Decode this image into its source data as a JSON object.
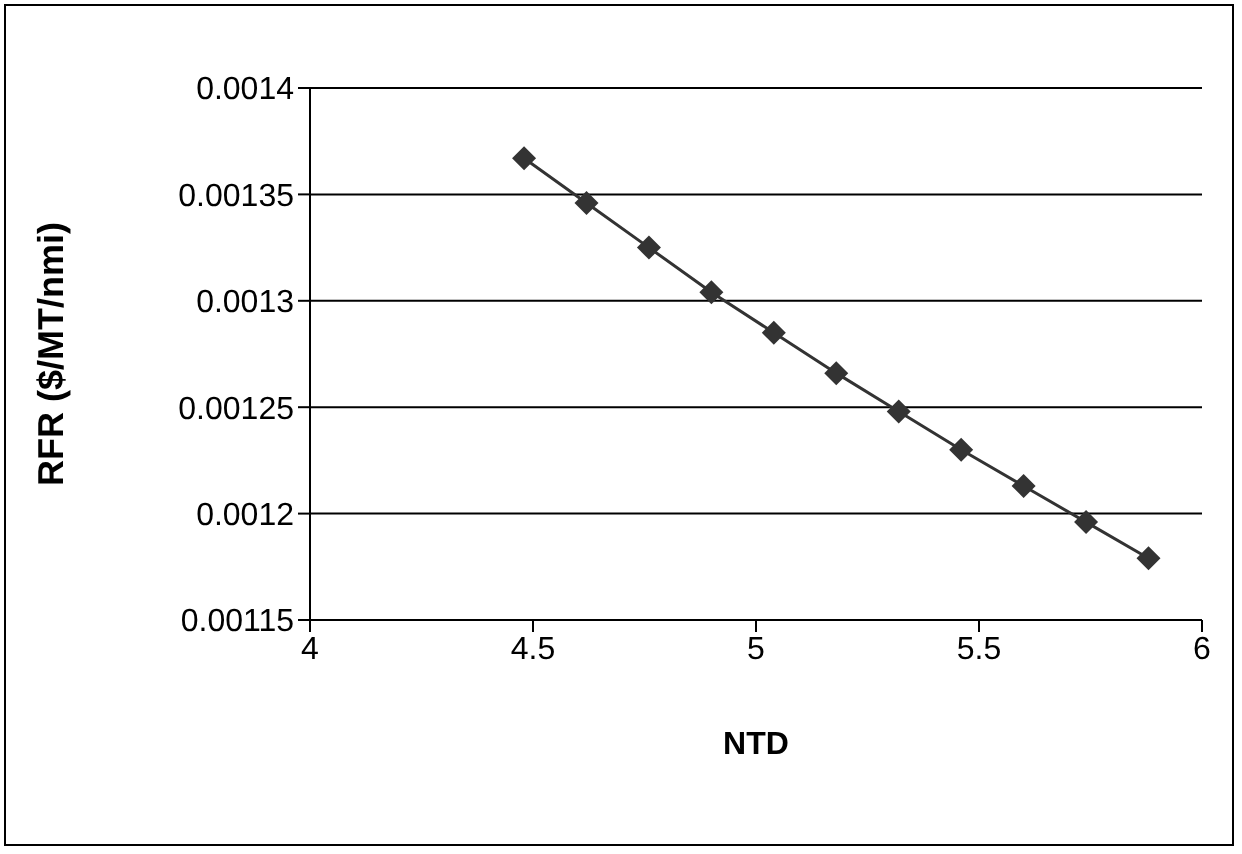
{
  "chart_data": {
    "type": "line",
    "xlabel": "NTD",
    "ylabel": "RFR ($/MT/nmi)",
    "xlim": [
      4,
      6
    ],
    "xticks": [
      4,
      4.5,
      5,
      5.5,
      6
    ],
    "ylim": [
      0.00115,
      0.0014
    ],
    "yticks": [
      0.00115,
      0.0012,
      0.00125,
      0.0013,
      0.00135,
      0.0014
    ],
    "grid": "y",
    "marker": "diamond",
    "line_style": "solid",
    "series": [
      {
        "color": "#333333",
        "x": [
          4.48,
          4.62,
          4.76,
          4.9,
          5.04,
          5.18,
          5.32,
          5.46,
          5.6,
          5.74,
          5.88
        ],
        "values": [
          0.001367,
          0.001346,
          0.001325,
          0.001304,
          0.001285,
          0.001266,
          0.001248,
          0.00123,
          0.001213,
          0.001196,
          0.001179
        ]
      }
    ]
  }
}
